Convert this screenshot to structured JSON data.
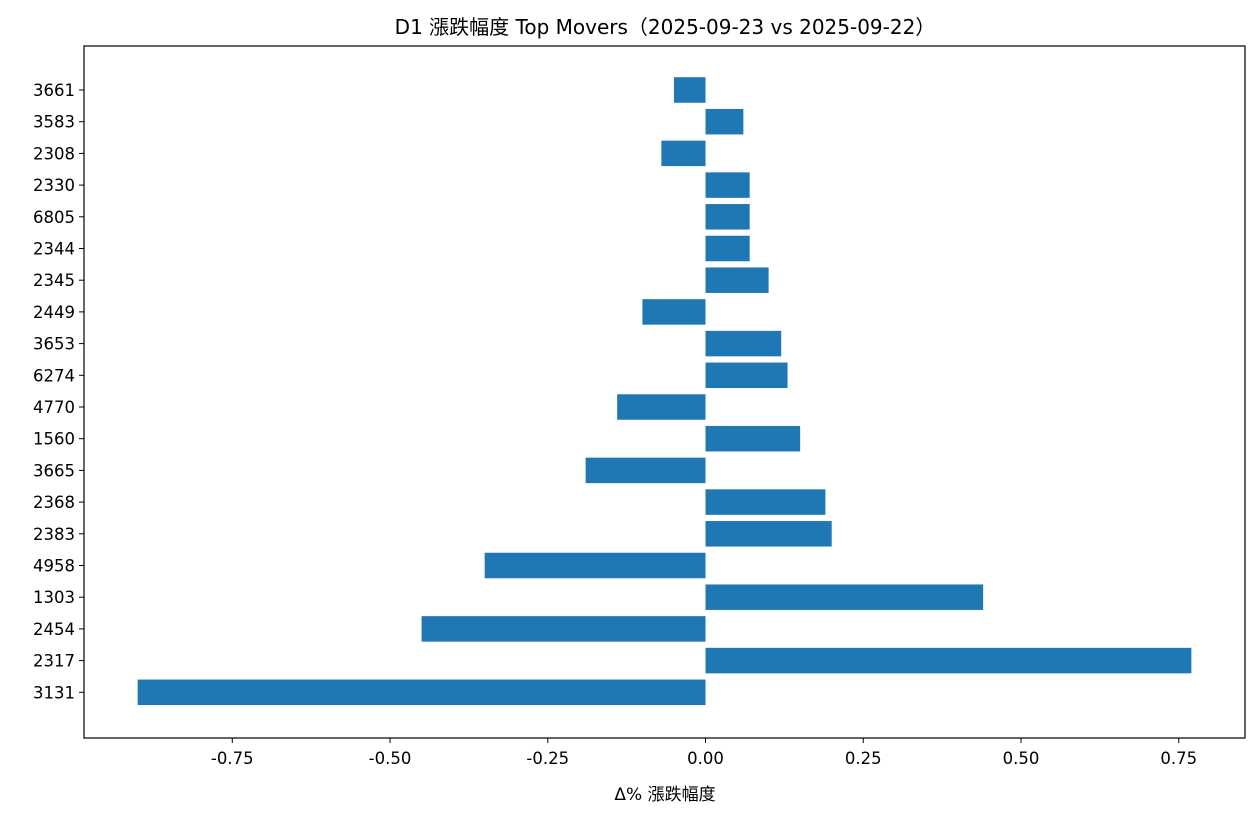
{
  "chart_data": {
    "type": "bar",
    "orientation": "horizontal",
    "title": "D1 漲跌幅度 Top Movers（2025-09-23 vs 2025-09-22）",
    "xlabel": "Δ% 漲跌幅度",
    "ylabel": "",
    "categories": [
      "3661",
      "3583",
      "2308",
      "2330",
      "6805",
      "2344",
      "2345",
      "2449",
      "3653",
      "6274",
      "4770",
      "1560",
      "3665",
      "2368",
      "2383",
      "4958",
      "1303",
      "2454",
      "2317",
      "3131"
    ],
    "values": [
      -0.05,
      0.06,
      -0.07,
      0.07,
      0.07,
      0.07,
      0.1,
      -0.1,
      0.12,
      0.13,
      -0.14,
      0.15,
      -0.19,
      0.19,
      0.2,
      -0.35,
      0.44,
      -0.45,
      0.77,
      -0.9
    ],
    "xlim": [
      -0.985,
      0.855
    ],
    "xticks": [
      -0.75,
      -0.5,
      -0.25,
      0.0,
      0.25,
      0.5,
      0.75
    ],
    "xtick_labels": [
      "-0.75",
      "-0.50",
      "-0.25",
      "0.00",
      "0.25",
      "0.50",
      "0.75"
    ],
    "bar_color": "#1f77b4",
    "grid": false,
    "legend": "none"
  }
}
